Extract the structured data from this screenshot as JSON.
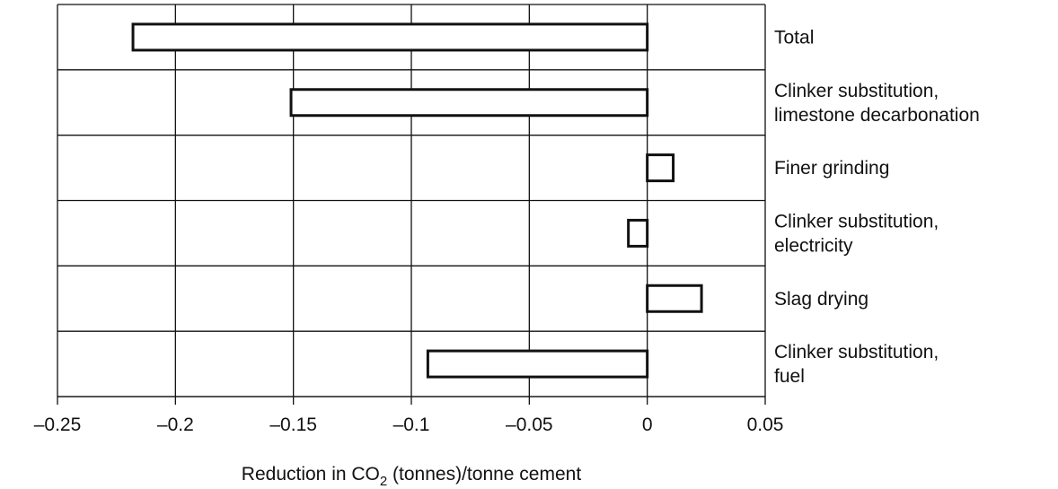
{
  "chart_data": {
    "type": "bar",
    "orientation": "horizontal",
    "categories": [
      [
        "Total"
      ],
      [
        "Clinker substitution,",
        "limestone decarbonation"
      ],
      [
        "Finer grinding"
      ],
      [
        "Clinker substitution,",
        "electricity"
      ],
      [
        "Slag drying"
      ],
      [
        "Clinker substitution,",
        "fuel"
      ]
    ],
    "values": [
      -0.218,
      -0.151,
      0.011,
      -0.008,
      0.023,
      -0.093
    ],
    "xlim": [
      -0.25,
      0.05
    ],
    "xticks": [
      -0.25,
      -0.2,
      -0.15,
      -0.1,
      -0.05,
      0,
      0.05
    ],
    "xtick_labels": [
      "–0.25",
      "–0.2",
      "–0.15",
      "–0.1",
      "–0.05",
      "0",
      "0.05"
    ],
    "xlabel": {
      "before": "Reduction in CO",
      "subscript": "2",
      "after": " (tonnes)/tonne cement"
    },
    "grid": true,
    "legend": "none",
    "colors": {
      "bar_fill": "#ffffff",
      "bar_stroke": "#111111",
      "grid": "#111111"
    }
  }
}
